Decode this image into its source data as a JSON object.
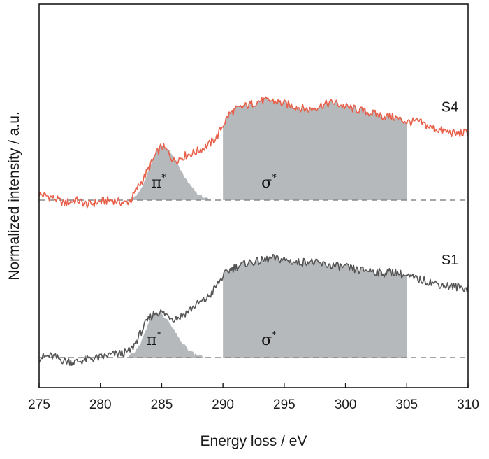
{
  "chart_data": {
    "type": "line",
    "xlabel": "Energy loss / eV",
    "ylabel": "Normalized intensity / a.u.",
    "xlim": [
      275,
      310
    ],
    "x_ticks": [
      275,
      280,
      285,
      290,
      295,
      300,
      305,
      310
    ],
    "y_ticks": [],
    "grid": false,
    "baseline_style": "dashed",
    "series": [
      {
        "name": "S4",
        "color": "#e8604a",
        "offset": 1.0,
        "points": [
          [
            275,
            0.04
          ],
          [
            276,
            0.02
          ],
          [
            277,
            -0.02
          ],
          [
            278,
            0.0
          ],
          [
            279,
            -0.03
          ],
          [
            280,
            -0.01
          ],
          [
            281,
            0.0
          ],
          [
            282,
            -0.02
          ],
          [
            282.5,
            0.0
          ],
          [
            283,
            0.08
          ],
          [
            283.5,
            0.14
          ],
          [
            284,
            0.22
          ],
          [
            284.5,
            0.3
          ],
          [
            285,
            0.36
          ],
          [
            285.5,
            0.32
          ],
          [
            286,
            0.26
          ],
          [
            286.5,
            0.28
          ],
          [
            287,
            0.3
          ],
          [
            287.5,
            0.31
          ],
          [
            288,
            0.33
          ],
          [
            288.5,
            0.35
          ],
          [
            289,
            0.38
          ],
          [
            289.5,
            0.42
          ],
          [
            290,
            0.5
          ],
          [
            290.5,
            0.57
          ],
          [
            291,
            0.6
          ],
          [
            292,
            0.63
          ],
          [
            293,
            0.66
          ],
          [
            294,
            0.66
          ],
          [
            295,
            0.64
          ],
          [
            296,
            0.62
          ],
          [
            297,
            0.6
          ],
          [
            298,
            0.63
          ],
          [
            299,
            0.65
          ],
          [
            300,
            0.62
          ],
          [
            301,
            0.6
          ],
          [
            302,
            0.58
          ],
          [
            303,
            0.56
          ],
          [
            304,
            0.55
          ],
          [
            305,
            0.52
          ],
          [
            306,
            0.52
          ],
          [
            307,
            0.48
          ],
          [
            308,
            0.46
          ],
          [
            309,
            0.44
          ],
          [
            310,
            0.45
          ]
        ],
        "filled_regions": [
          {
            "label": "π*",
            "type": "peak",
            "x_start": 282.5,
            "x_end": 289,
            "center": 285,
            "height": 0.36
          },
          {
            "label": "σ*",
            "type": "band",
            "x_start": 290,
            "x_end": 305
          }
        ]
      },
      {
        "name": "S1",
        "color": "#555555",
        "offset": 0.0,
        "points": [
          [
            275,
            0.0
          ],
          [
            276,
            0.01
          ],
          [
            277,
            -0.02
          ],
          [
            278,
            -0.03
          ],
          [
            279,
            -0.01
          ],
          [
            280,
            0.0
          ],
          [
            281,
            0.02
          ],
          [
            282,
            0.03
          ],
          [
            282.5,
            0.05
          ],
          [
            283,
            0.12
          ],
          [
            283.5,
            0.2
          ],
          [
            284,
            0.26
          ],
          [
            284.5,
            0.3
          ],
          [
            285,
            0.3
          ],
          [
            285.5,
            0.28
          ],
          [
            286,
            0.26
          ],
          [
            286.5,
            0.27
          ],
          [
            287,
            0.3
          ],
          [
            287.5,
            0.33
          ],
          [
            288,
            0.36
          ],
          [
            288.5,
            0.38
          ],
          [
            289,
            0.42
          ],
          [
            289.5,
            0.48
          ],
          [
            290,
            0.54
          ],
          [
            290.5,
            0.58
          ],
          [
            291,
            0.6
          ],
          [
            292,
            0.63
          ],
          [
            293,
            0.64
          ],
          [
            294,
            0.66
          ],
          [
            295,
            0.65
          ],
          [
            296,
            0.63
          ],
          [
            297,
            0.64
          ],
          [
            298,
            0.62
          ],
          [
            299,
            0.61
          ],
          [
            300,
            0.6
          ],
          [
            301,
            0.58
          ],
          [
            302,
            0.58
          ],
          [
            303,
            0.56
          ],
          [
            304,
            0.57
          ],
          [
            305,
            0.54
          ],
          [
            306,
            0.52
          ],
          [
            307,
            0.5
          ],
          [
            308,
            0.48
          ],
          [
            309,
            0.47
          ],
          [
            310,
            0.46
          ]
        ],
        "filled_regions": [
          {
            "label": "π*",
            "type": "peak",
            "x_start": 282.3,
            "x_end": 288.5,
            "center": 284.6,
            "height": 0.3
          },
          {
            "label": "σ*",
            "type": "band",
            "x_start": 290,
            "x_end": 305
          }
        ]
      }
    ],
    "fill_color": "#b6b9bc",
    "baseline_color": "#888888"
  }
}
